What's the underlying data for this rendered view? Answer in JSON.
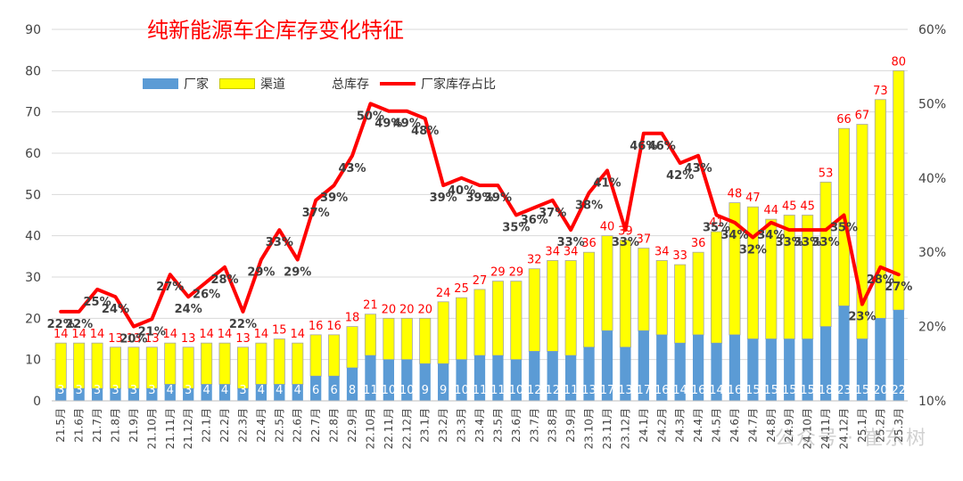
{
  "chart_data": {
    "type": "bar+line",
    "title": "纯新能源车企库存变化特征",
    "categories": [
      "21.5月",
      "21.6月",
      "21.7月",
      "21.8月",
      "21.9月",
      "21.10月",
      "21.11月",
      "21.12月",
      "22.1月",
      "22.2月",
      "22.3月",
      "22.4月",
      "22.5月",
      "22.6月",
      "22.7月",
      "22.8月",
      "22.9月",
      "22.10月",
      "22.11月",
      "22.12月",
      "23.1月",
      "23.2月",
      "23.3月",
      "23.4月",
      "23.5月",
      "23.6月",
      "23.7月",
      "23.8月",
      "23.9月",
      "23.10月",
      "23.11月",
      "23.12月",
      "24.1月",
      "24.2月",
      "24.3月",
      "24.4月",
      "24.5月",
      "24.6月",
      "24.7月",
      "24.8月",
      "24.9月",
      "24.10月",
      "24.11月",
      "24.12月",
      "25.1月",
      "25.2月",
      "25.3月"
    ],
    "series": [
      {
        "name": "厂家",
        "type": "bar",
        "color": "#5b9bd5",
        "values": [
          3,
          3,
          3,
          3,
          3,
          3,
          4,
          3,
          4,
          4,
          3,
          4,
          4,
          4,
          6,
          6,
          8,
          11,
          10,
          10,
          9,
          9,
          10,
          11,
          11,
          10,
          12,
          12,
          11,
          13,
          17,
          13,
          17,
          16,
          14,
          16,
          14,
          16,
          15,
          15,
          15,
          15,
          18,
          23,
          15,
          20,
          22
        ]
      },
      {
        "name": "渠道",
        "type": "bar",
        "color": "#ffff00",
        "values": [
          11,
          11,
          11,
          10,
          10,
          10,
          10,
          10,
          10,
          10,
          10,
          10,
          11,
          10,
          10,
          10,
          10,
          10,
          10,
          10,
          11,
          15,
          15,
          16,
          18,
          19,
          20,
          22,
          23,
          23,
          23,
          26,
          20,
          18,
          19,
          20,
          27,
          32,
          32,
          29,
          30,
          30,
          35,
          43,
          52,
          53,
          58
        ]
      },
      {
        "name": "总库存",
        "type": "total",
        "values": [
          14,
          14,
          14,
          13,
          13,
          13,
          14,
          13,
          14,
          14,
          13,
          14,
          15,
          14,
          16,
          16,
          18,
          21,
          20,
          20,
          20,
          24,
          25,
          27,
          29,
          29,
          32,
          34,
          34,
          36,
          40,
          39,
          37,
          34,
          33,
          36,
          41,
          48,
          47,
          44,
          45,
          45,
          53,
          66,
          67,
          73,
          80
        ]
      },
      {
        "name": "厂家库存占比",
        "type": "line",
        "color": "#ff0000",
        "values": [
          22,
          22,
          25,
          24,
          20,
          21,
          27,
          24,
          26,
          28,
          22,
          29,
          33,
          29,
          37,
          39,
          43,
          50,
          49,
          49,
          48,
          39,
          40,
          39,
          39,
          35,
          36,
          37,
          33,
          38,
          41,
          33,
          46,
          46,
          42,
          43,
          35,
          34,
          32,
          34,
          33,
          33,
          33,
          35,
          23,
          28,
          27
        ]
      }
    ],
    "yaxis_left": {
      "min": 0,
      "max": 90,
      "ticks": [
        "0",
        "10",
        "20",
        "30",
        "40",
        "50",
        "60",
        "70",
        "80",
        "90"
      ]
    },
    "yaxis_right": {
      "min": 10,
      "max": 60,
      "ticks": [
        "10%",
        "20%",
        "30%",
        "40%",
        "50%",
        "60%"
      ]
    },
    "grid": true,
    "legend": "top-left",
    "watermark": "公众号 · 崔东树"
  }
}
